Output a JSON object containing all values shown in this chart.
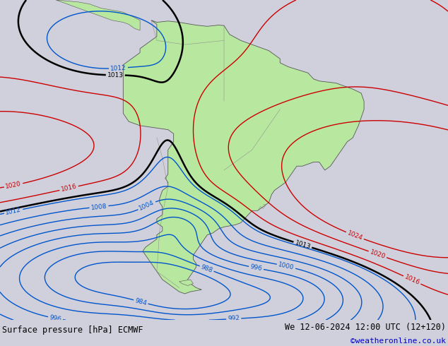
{
  "title_left": "Surface pressure [hPa] ECMWF",
  "title_right": "We 12-06-2024 12:00 UTC (12+120)",
  "copyright": "©weatheronline.co.uk",
  "fig_width": 6.34,
  "fig_height": 4.9,
  "dpi": 100,
  "map_bg": "#d0d0dc",
  "land_color": "#b8e8a0",
  "border_color": "#888888",
  "text_color_left": "#000000",
  "text_color_right": "#000000",
  "text_color_copy": "#0000cc",
  "bottom_bg": "#ffffff",
  "blue_color": "#0055cc",
  "red_color": "#cc0000",
  "black_color": "#000000",
  "label_fontsize": 6.5,
  "lw_main": 1.0,
  "lw_black": 1.8,
  "extent_lon": [
    -100,
    -20
  ],
  "extent_lat": [
    -62,
    17
  ]
}
